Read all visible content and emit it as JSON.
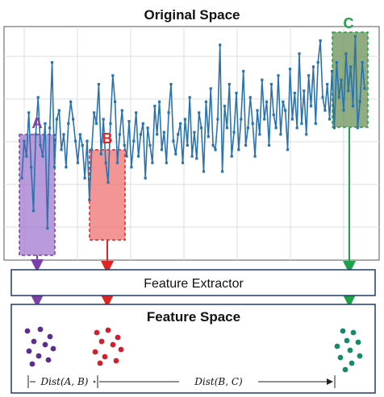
{
  "titles": {
    "original_space": "Original Space",
    "feature_extractor": "Feature Extractor",
    "feature_space": "Feature Space"
  },
  "regions": [
    {
      "label": "A",
      "color": "#7b3fa8",
      "fill": "#9b6fcb"
    },
    {
      "label": "B",
      "color": "#e02424",
      "fill": "#f07272"
    },
    {
      "label": "C",
      "color": "#1fa04a",
      "fill": "#5f8a4a"
    }
  ],
  "distances": {
    "ab": "Dist(A, B)",
    "bc": "Dist(B, C)"
  },
  "series": {
    "color": "#2a73ad",
    "values": [
      35,
      52,
      45,
      65,
      40,
      20,
      55,
      72,
      50,
      45,
      60,
      12,
      58,
      88,
      40,
      62,
      66,
      48,
      55,
      40,
      60,
      70,
      62,
      52,
      42,
      55,
      50,
      35,
      52,
      25,
      48,
      65,
      60,
      78,
      46,
      62,
      42,
      33,
      60,
      82,
      70,
      42,
      55,
      66,
      50,
      45,
      61,
      40,
      52,
      65,
      45,
      55,
      60,
      35,
      58,
      50,
      42,
      68,
      55,
      70,
      48,
      56,
      42,
      65,
      78,
      52,
      46,
      55,
      60,
      42,
      62,
      50,
      72,
      45,
      56,
      44,
      65,
      58,
      38,
      70,
      54,
      76,
      50,
      48,
      62,
      96,
      38,
      68,
      58,
      78,
      45,
      56,
      74,
      48,
      62,
      84,
      50,
      58,
      72,
      60,
      45,
      66,
      55,
      80,
      62,
      70,
      50,
      78,
      64,
      58,
      82,
      55,
      70,
      66,
      48,
      85,
      62,
      74,
      58,
      92,
      60,
      75,
      55,
      82,
      68,
      86,
      60,
      88,
      98,
      72,
      66,
      78,
      62,
      84,
      58,
      88,
      72,
      80,
      66,
      92,
      75,
      86,
      68,
      100,
      58,
      70,
      88,
      76
    ]
  },
  "feature_points": {
    "A": {
      "color": "#5b2d90",
      "count": 10
    },
    "B": {
      "color": "#d01f2f",
      "count": 10
    },
    "C": {
      "color": "#178a6a",
      "count": 10
    }
  }
}
